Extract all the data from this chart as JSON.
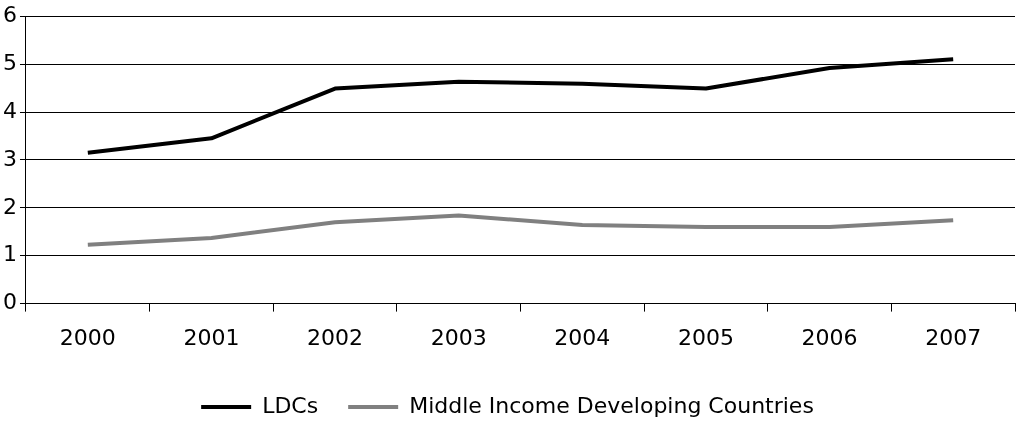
{
  "chart_data": {
    "type": "line",
    "categories": [
      "2000",
      "2001",
      "2002",
      "2003",
      "2004",
      "2005",
      "2006",
      "2007"
    ],
    "series": [
      {
        "name": "LDCs",
        "color": "#000000",
        "values": [
          3.15,
          3.45,
          4.49,
          4.63,
          4.59,
          4.49,
          4.92,
          5.1
        ]
      },
      {
        "name": "Middle Income Developing Countries",
        "color": "#808080",
        "values": [
          1.23,
          1.37,
          1.7,
          1.84,
          1.64,
          1.6,
          1.6,
          1.74
        ]
      }
    ],
    "ylim": [
      0,
      6
    ],
    "yticks": [
      0,
      1,
      2,
      3,
      4,
      5,
      6
    ],
    "grid": "y",
    "legend": "bottom",
    "marker": "none",
    "line_style": "solid"
  }
}
